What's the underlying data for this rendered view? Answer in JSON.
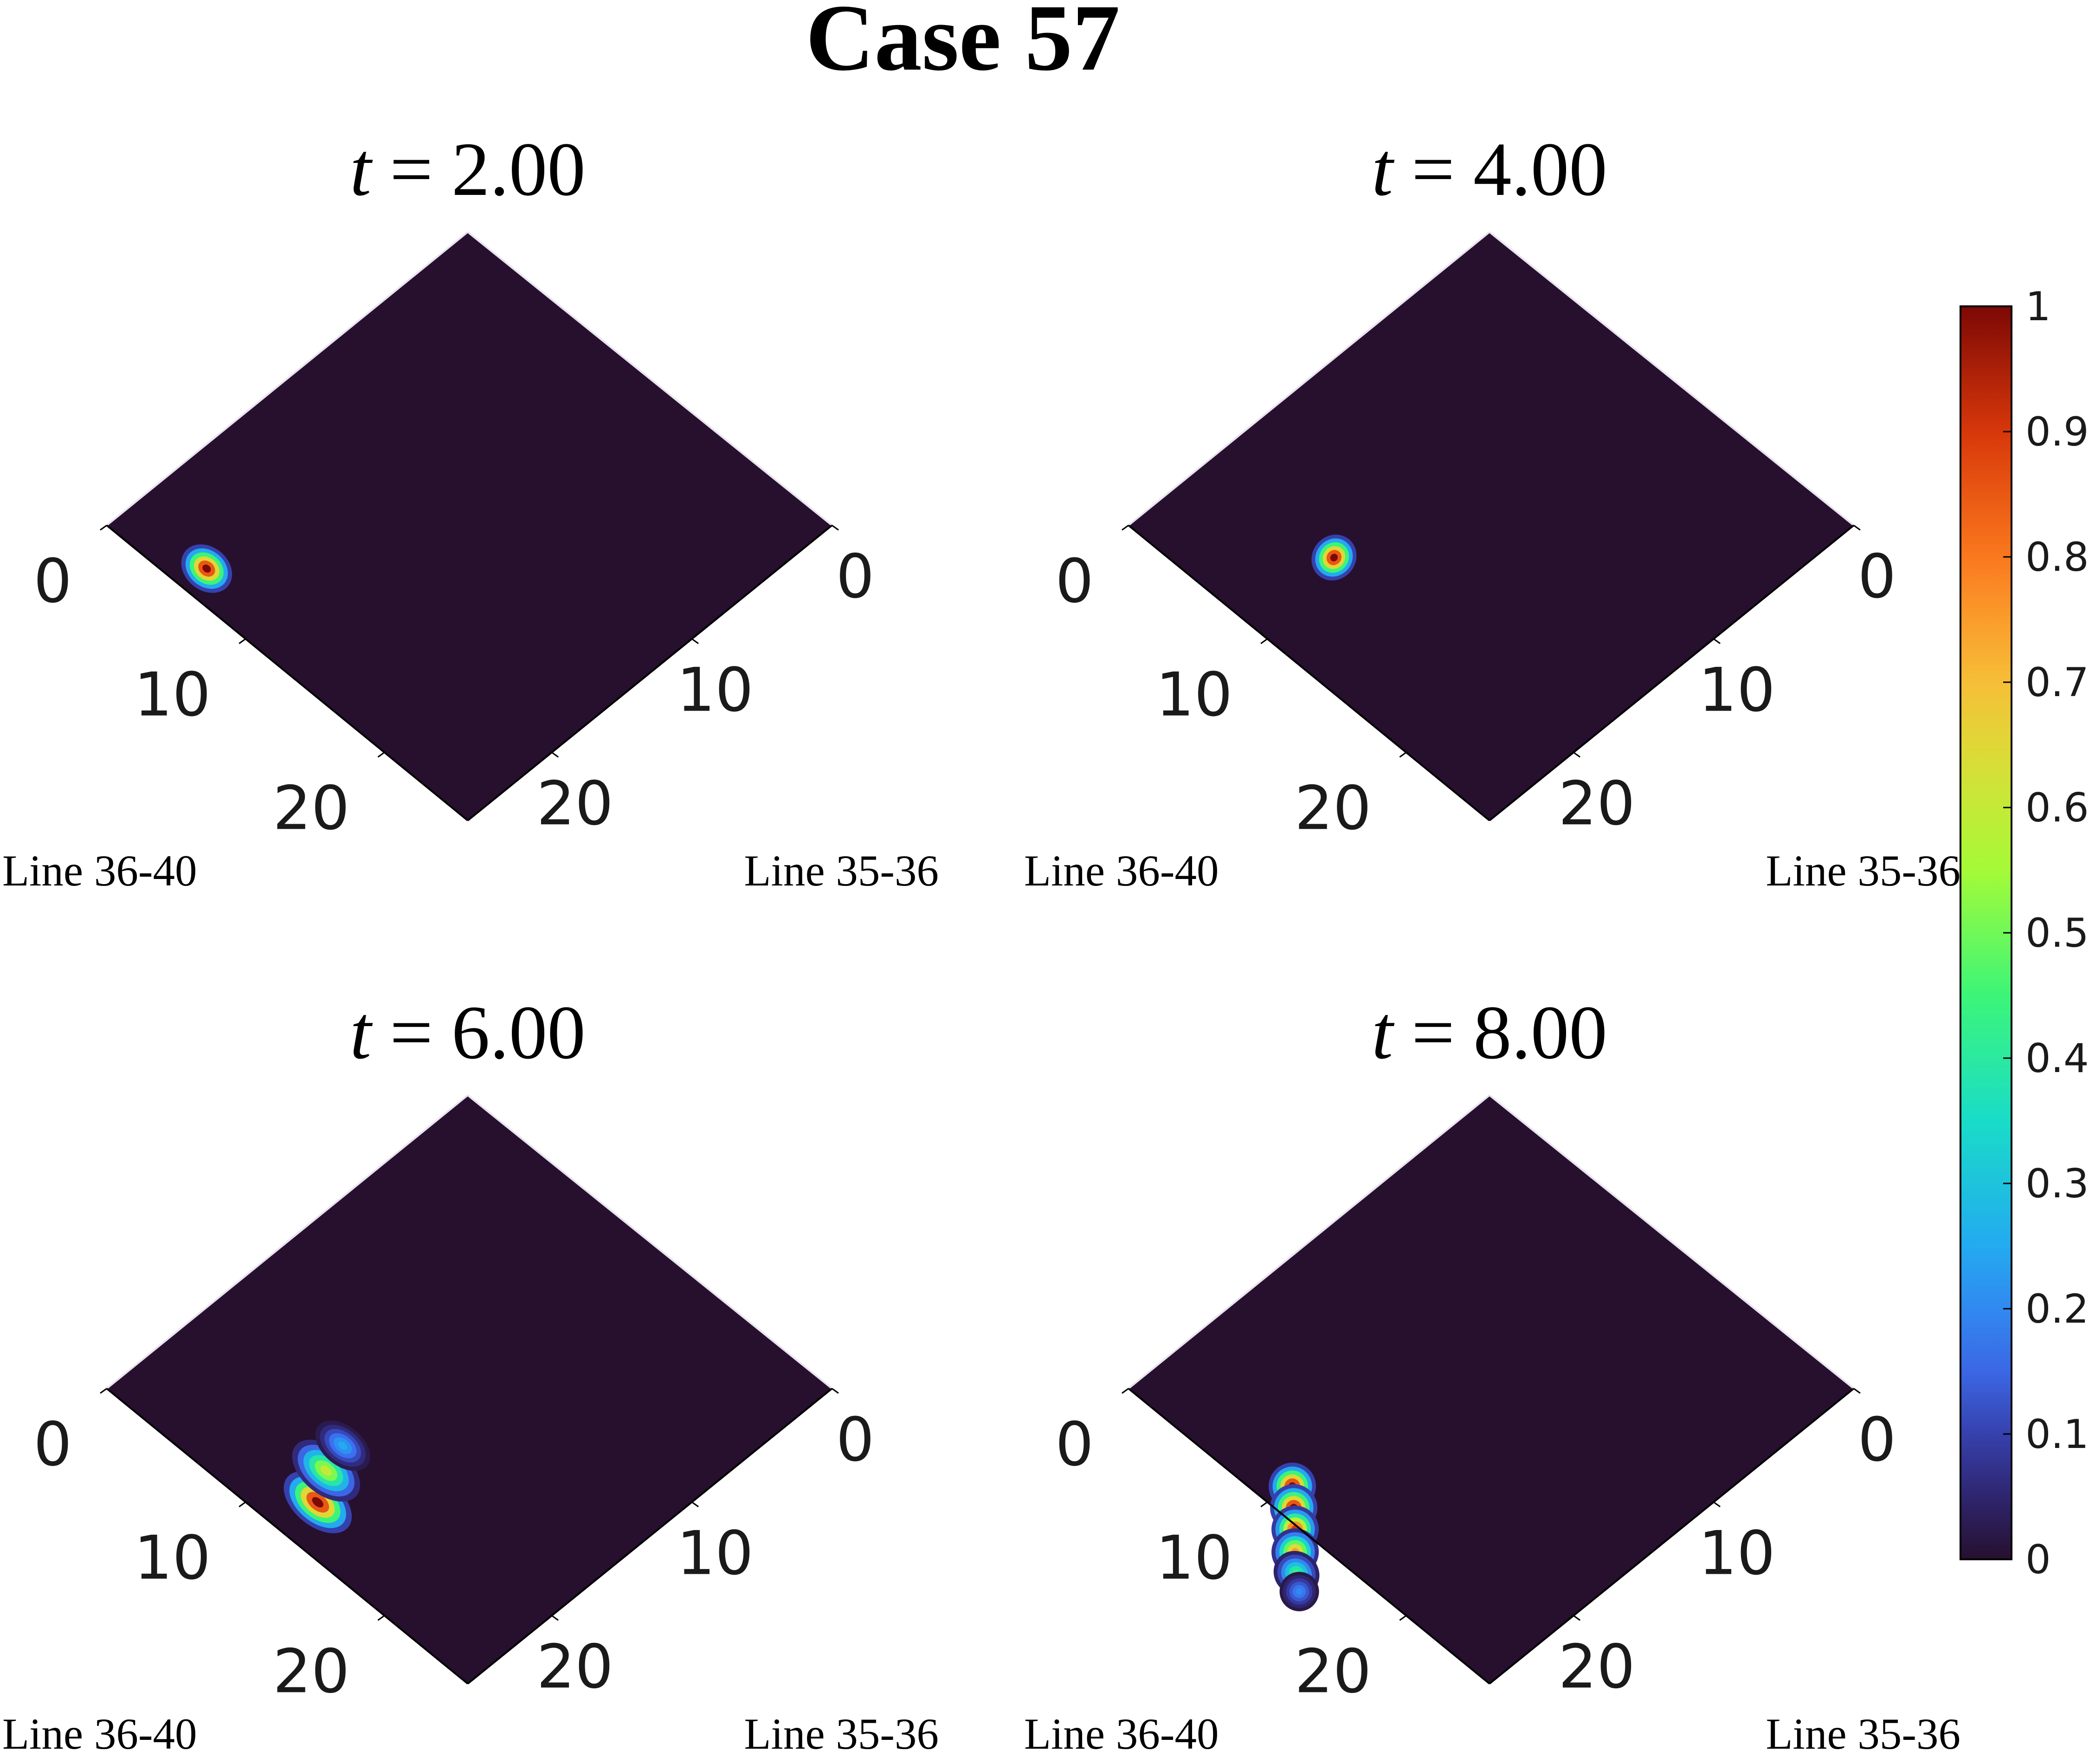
{
  "title": "Case 57",
  "chart_data": {
    "type": "heatmap",
    "subplots": [
      {
        "title_var": "t",
        "title_eq": "=",
        "title_value": "2.00",
        "x_axis_label": "Line 36-40",
        "y_axis_label": "Line 35-36",
        "x_ticks": [
          "0",
          "10",
          "20"
        ],
        "y_ticks": [
          "0",
          "10",
          "20"
        ],
        "xlim": [
          0,
          26
        ],
        "ylim": [
          0,
          26
        ],
        "blobs": [
          {
            "u": 5.5,
            "v": 1.7,
            "su": 0.7,
            "sv": 0.55,
            "peak": 1.0
          }
        ]
      },
      {
        "title_var": "t",
        "title_eq": "=",
        "title_value": "4.00",
        "x_axis_label": "Line 36-40",
        "y_axis_label": "Line 35-36",
        "x_ticks": [
          "0",
          "10",
          "20"
        ],
        "y_ticks": [
          "0",
          "10",
          "20"
        ],
        "xlim": [
          0,
          26
        ],
        "ylim": [
          0,
          26
        ],
        "blobs": [
          {
            "u": 8.8,
            "v": 6.0,
            "su": 0.55,
            "sv": 0.6,
            "peak": 1.0
          }
        ]
      },
      {
        "title_var": "t",
        "title_eq": "=",
        "title_value": "6.00",
        "x_axis_label": "Line 36-40",
        "y_axis_label": "Line 35-36",
        "x_ticks": [
          "0",
          "10",
          "20"
        ],
        "y_ticks": [
          "0",
          "10",
          "20"
        ],
        "xlim": [
          0,
          26
        ],
        "ylim": [
          0,
          26
        ],
        "blobs": [
          {
            "u": 12.6,
            "v": 2.6,
            "su": 1.0,
            "sv": 0.6,
            "peak": 1.0
          },
          {
            "u": 11.5,
            "v": 4.3,
            "su": 1.0,
            "sv": 0.6,
            "peak": 0.6
          },
          {
            "u": 11.0,
            "v": 6.0,
            "su": 0.8,
            "sv": 0.5,
            "peak": 0.25
          }
        ]
      },
      {
        "title_var": "t",
        "title_eq": "=",
        "title_value": "8.00",
        "x_axis_label": "Line 36-40",
        "y_axis_label": "Line 35-36",
        "x_ticks": [
          "0",
          "10",
          "20"
        ],
        "y_ticks": [
          "0",
          "10",
          "20"
        ],
        "xlim": [
          0,
          26
        ],
        "ylim": [
          0,
          26
        ],
        "blobs": [
          {
            "u": 10.2,
            "v": 1.6,
            "su": 0.6,
            "sv": 0.6,
            "peak": 1.0
          },
          {
            "u": 11.2,
            "v": 0.7,
            "su": 0.6,
            "sv": 0.6,
            "peak": 1.0
          },
          {
            "u": 12.2,
            "v": -0.2,
            "su": 0.6,
            "sv": 0.6,
            "peak": 0.9
          },
          {
            "u": 13.2,
            "v": -1.2,
            "su": 0.6,
            "sv": 0.6,
            "peak": 0.75
          },
          {
            "u": 14.2,
            "v": -2.1,
            "su": 0.6,
            "sv": 0.55,
            "peak": 0.45
          },
          {
            "u": 15.1,
            "v": -2.8,
            "su": 0.5,
            "sv": 0.5,
            "peak": 0.2
          }
        ]
      }
    ],
    "colorbar": {
      "min": 0,
      "max": 1,
      "colormap": "turbo",
      "ticks": [
        "0",
        "0.1",
        "0.2",
        "0.3",
        "0.4",
        "0.5",
        "0.6",
        "0.7",
        "0.8",
        "0.9",
        "1"
      ],
      "background_color": "#26102e"
    }
  }
}
